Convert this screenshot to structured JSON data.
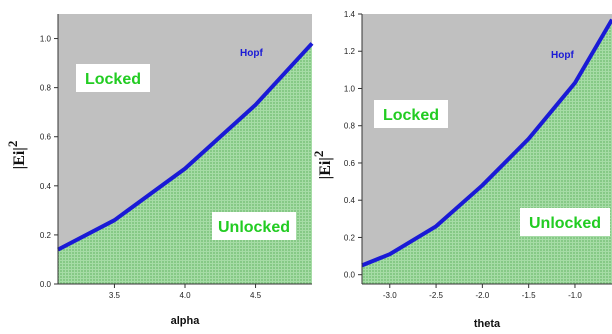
{
  "chart_data": [
    {
      "type": "area",
      "xlabel": "alpha",
      "ylabel": "|Ei|",
      "ylabel_sup": "2",
      "xlim": [
        3.1,
        4.9
      ],
      "ylim": [
        0.0,
        1.1
      ],
      "xticks": [
        3.5,
        4.0,
        4.5
      ],
      "xtick_labels": [
        "3.5",
        "4.0",
        "4.5"
      ],
      "yticks": [
        0.0,
        0.2,
        0.4,
        0.6,
        0.8,
        1.0
      ],
      "ytick_labels": [
        "0.0",
        "0.2",
        "0.4",
        "0.6",
        "0.8",
        "1.0"
      ],
      "series": [
        {
          "name": "Hopf",
          "x": [
            3.1,
            3.5,
            4.0,
            4.5,
            4.9
          ],
          "y": [
            0.14,
            0.26,
            0.47,
            0.73,
            0.98
          ]
        }
      ],
      "regions": {
        "above": "Locked",
        "below": "Unlocked"
      },
      "grid": false
    },
    {
      "type": "area",
      "xlabel": "theta",
      "ylabel": "|Ei|",
      "ylabel_sup": "2",
      "xlim": [
        -3.3,
        -0.6
      ],
      "ylim": [
        -0.05,
        1.4
      ],
      "xticks": [
        -3.0,
        -2.5,
        -2.0,
        -1.5,
        -1.0
      ],
      "xtick_labels": [
        "-3.0",
        "-2.5",
        "-2.0",
        "-1.5",
        "-1.0"
      ],
      "yticks": [
        0.0,
        0.2,
        0.4,
        0.6,
        0.8,
        1.0,
        1.2,
        1.4
      ],
      "ytick_labels": [
        "0.0",
        "0.2",
        "0.4",
        "0.6",
        "0.8",
        "1.0",
        "1.2",
        "1.4"
      ],
      "series": [
        {
          "name": "Hopf",
          "x": [
            -3.3,
            -3.0,
            -2.5,
            -2.0,
            -1.5,
            -1.0,
            -0.6
          ],
          "y": [
            0.05,
            0.11,
            0.26,
            0.48,
            0.73,
            1.03,
            1.37
          ]
        }
      ],
      "regions": {
        "above": "Locked",
        "below": "Unlocked"
      },
      "grid": false
    }
  ],
  "colors": {
    "locked_region": "#c0c0c0",
    "unlocked_region": "#8fd08f",
    "hopf_line": "#1a1ad6",
    "region_text": "#22cc22",
    "label_box": "#ffffff"
  }
}
